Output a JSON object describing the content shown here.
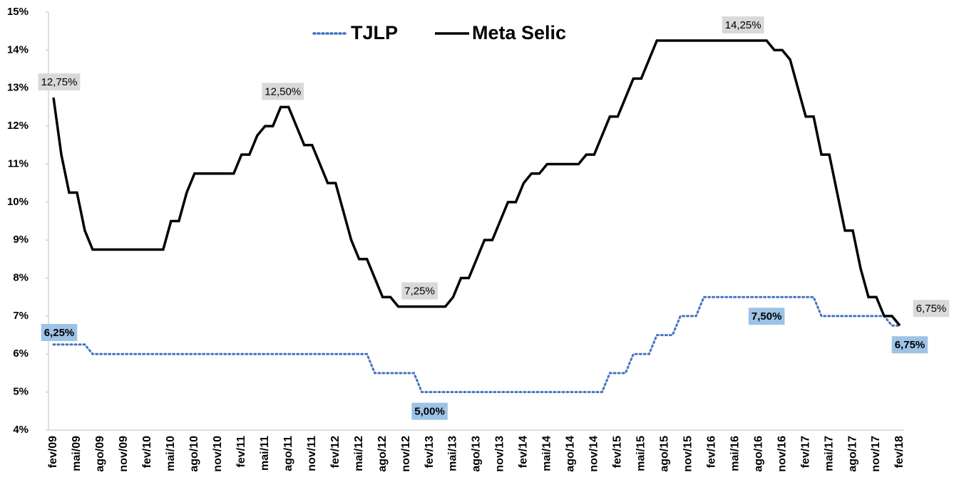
{
  "chart_data": {
    "type": "line",
    "categories": [
      "fev/09",
      null,
      null,
      "mai/09",
      null,
      null,
      "ago/09",
      null,
      null,
      "nov/09",
      null,
      null,
      "fev/10",
      null,
      null,
      "mai/10",
      null,
      null,
      "ago/10",
      null,
      null,
      "nov/10",
      null,
      null,
      "fev/11",
      null,
      null,
      "mai/11",
      null,
      null,
      "ago/11",
      null,
      null,
      "nov/11",
      null,
      null,
      "fev/12",
      null,
      null,
      "mai/12",
      null,
      null,
      "ago/12",
      null,
      null,
      "nov/12",
      null,
      null,
      "fev/13",
      null,
      null,
      "mai/13",
      null,
      null,
      "ago/13",
      null,
      null,
      "nov/13",
      null,
      null,
      "fev/14",
      null,
      null,
      "mai/14",
      null,
      null,
      "ago/14",
      null,
      null,
      "nov/14",
      null,
      null,
      "fev/15",
      null,
      null,
      "mai/15",
      null,
      null,
      "ago/15",
      null,
      null,
      "nov/15",
      null,
      null,
      "fev/16",
      null,
      null,
      "mai/16",
      null,
      null,
      "ago/16",
      null,
      null,
      "nov/16",
      null,
      null,
      "fev/17",
      null,
      null,
      "mai/17",
      null,
      null,
      "ago/17",
      null,
      null,
      "nov/17",
      null,
      null,
      "fev/18"
    ],
    "series": [
      {
        "name": "TJLP",
        "color": "#4472c4",
        "dash": "dotted",
        "values": [
          6.25,
          6.25,
          6.25,
          6.25,
          6.25,
          6,
          6,
          6,
          6,
          6,
          6,
          6,
          6,
          6,
          6,
          6,
          6,
          6,
          6,
          6,
          6,
          6,
          6,
          6,
          6,
          6,
          6,
          6,
          6,
          6,
          6,
          6,
          6,
          6,
          6,
          6,
          6,
          6,
          6,
          6,
          6,
          5.5,
          5.5,
          5.5,
          5.5,
          5.5,
          5.5,
          5,
          5,
          5,
          5,
          5,
          5,
          5,
          5,
          5,
          5,
          5,
          5,
          5,
          5,
          5,
          5,
          5,
          5,
          5,
          5,
          5,
          5,
          5,
          5,
          5.5,
          5.5,
          5.5,
          6,
          6,
          6,
          6.5,
          6.5,
          6.5,
          7,
          7,
          7,
          7.5,
          7.5,
          7.5,
          7.5,
          7.5,
          7.5,
          7.5,
          7.5,
          7.5,
          7.5,
          7.5,
          7.5,
          7.5,
          7.5,
          7.5,
          7,
          7,
          7,
          7,
          7,
          7,
          7,
          7,
          7,
          6.75,
          6.75
        ],
        "value_labels": [
          "6,25%",
          null,
          null,
          null,
          null,
          null,
          null,
          null,
          null,
          null,
          null,
          null,
          null,
          null,
          null,
          null,
          null,
          null,
          null,
          null,
          null,
          null,
          null,
          null,
          null,
          null,
          null,
          null,
          null,
          null,
          null,
          null,
          null,
          null,
          null,
          null,
          null,
          null,
          null,
          null,
          null,
          null,
          null,
          null,
          null,
          null,
          null,
          null,
          "5,00%",
          null,
          null,
          null,
          null,
          null,
          null,
          null,
          null,
          null,
          null,
          null,
          null,
          null,
          null,
          null,
          null,
          null,
          null,
          null,
          null,
          null,
          null,
          null,
          null,
          null,
          null,
          null,
          null,
          null,
          null,
          null,
          null,
          null,
          null,
          null,
          null,
          null,
          null,
          null,
          null,
          null,
          null,
          "7,50%",
          null,
          null,
          null,
          null,
          null,
          null,
          null,
          null,
          null,
          null,
          null,
          null,
          null,
          null,
          null,
          null,
          "6,75%"
        ]
      },
      {
        "name": "Meta Selic",
        "color": "#000000",
        "dash": "solid",
        "values": [
          12.75,
          11.25,
          10.25,
          10.25,
          9.25,
          8.75,
          8.75,
          8.75,
          8.75,
          8.75,
          8.75,
          8.75,
          8.75,
          8.75,
          8.75,
          9.5,
          9.5,
          10.25,
          10.75,
          10.75,
          10.75,
          10.75,
          10.75,
          10.75,
          11.25,
          11.25,
          11.75,
          12,
          12,
          12.5,
          12.5,
          12,
          11.5,
          11.5,
          11,
          10.5,
          10.5,
          9.75,
          9,
          8.5,
          8.5,
          8,
          7.5,
          7.5,
          7.25,
          7.25,
          7.25,
          7.25,
          7.25,
          7.25,
          7.25,
          7.5,
          8,
          8,
          8.5,
          9,
          9,
          9.5,
          10,
          10,
          10.5,
          10.75,
          10.75,
          11,
          11,
          11,
          11,
          11,
          11.25,
          11.25,
          11.75,
          12.25,
          12.25,
          12.75,
          13.25,
          13.25,
          13.75,
          14.25,
          14.25,
          14.25,
          14.25,
          14.25,
          14.25,
          14.25,
          14.25,
          14.25,
          14.25,
          14.25,
          14.25,
          14.25,
          14.25,
          14.25,
          14,
          14,
          13.75,
          13,
          12.25,
          12.25,
          11.25,
          11.25,
          10.25,
          9.25,
          9.25,
          8.25,
          7.5,
          7.5,
          7,
          7,
          6.75
        ],
        "value_labels": [
          "12,75%",
          null,
          null,
          null,
          null,
          null,
          null,
          null,
          null,
          null,
          null,
          null,
          null,
          null,
          null,
          null,
          null,
          null,
          null,
          null,
          null,
          null,
          null,
          null,
          null,
          null,
          null,
          null,
          null,
          null,
          "12,50%",
          null,
          null,
          null,
          null,
          null,
          null,
          null,
          null,
          null,
          null,
          null,
          null,
          null,
          null,
          null,
          "7,25%",
          null,
          null,
          null,
          null,
          null,
          null,
          null,
          null,
          null,
          null,
          null,
          null,
          null,
          null,
          null,
          null,
          null,
          null,
          null,
          null,
          null,
          null,
          null,
          null,
          null,
          null,
          null,
          null,
          null,
          null,
          null,
          null,
          null,
          null,
          null,
          null,
          null,
          null,
          null,
          null,
          null,
          "14,25%",
          null,
          null,
          null,
          null,
          null,
          null,
          null,
          null,
          null,
          null,
          null,
          null,
          null,
          null,
          null,
          null,
          null,
          null,
          null,
          "6,75%"
        ]
      }
    ],
    "ylim": [
      4,
      15
    ],
    "yticks": [
      {
        "value": 4,
        "label": "4%"
      },
      {
        "value": 5,
        "label": "5%"
      },
      {
        "value": 6,
        "label": "6%"
      },
      {
        "value": 7,
        "label": "7%"
      },
      {
        "value": 8,
        "label": "8%"
      },
      {
        "value": 9,
        "label": "9%"
      },
      {
        "value": 10,
        "label": "10%"
      },
      {
        "value": 11,
        "label": "11%"
      },
      {
        "value": 12,
        "label": "12%"
      },
      {
        "value": 13,
        "label": "13%"
      },
      {
        "value": 14,
        "label": "14%"
      },
      {
        "value": 15,
        "label": "15%"
      }
    ],
    "legend": "top",
    "grid": false
  }
}
